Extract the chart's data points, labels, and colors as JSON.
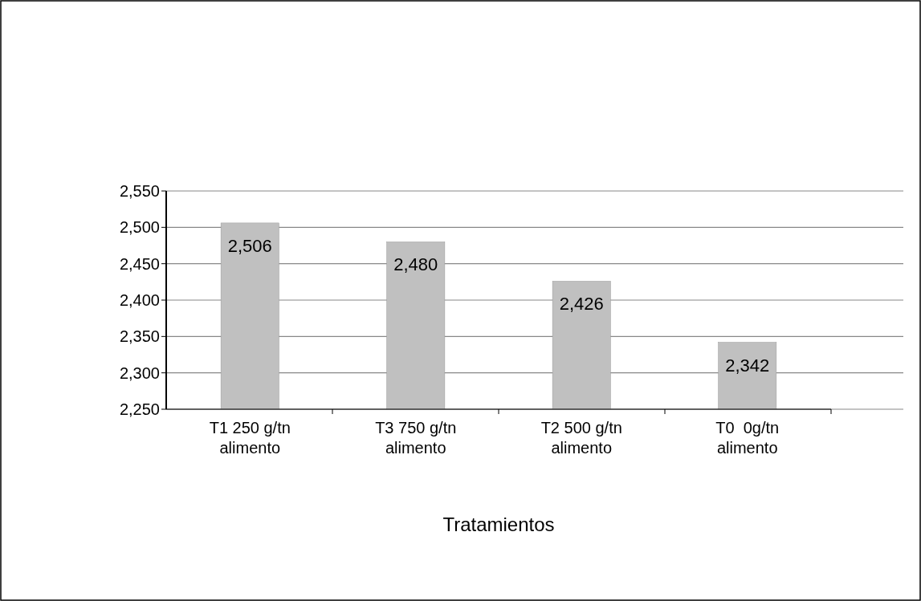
{
  "chart_data": {
    "type": "bar",
    "xlabel": "Tratamientos",
    "categories": [
      "T1 250 g/tn alimento",
      "T3 750 g/tn alimento",
      "T2 500 g/tn alimento",
      "T0  0g/tn alimento"
    ],
    "values": [
      2506,
      2480,
      2426,
      2342
    ],
    "value_labels": [
      "2,506",
      "2,480",
      "2,426",
      "2,342"
    ],
    "color": "#c0c0c0",
    "ylim": [
      2250,
      2550
    ],
    "yticks": [
      {
        "value": 2250,
        "label": "2,250"
      },
      {
        "value": 2300,
        "label": "2,300"
      },
      {
        "value": 2350,
        "label": "2,350"
      },
      {
        "value": 2400,
        "label": "2,400"
      },
      {
        "value": 2450,
        "label": "2,450"
      },
      {
        "value": 2500,
        "label": "2,500"
      },
      {
        "value": 2550,
        "label": "2,550"
      }
    ],
    "grid": "y"
  }
}
